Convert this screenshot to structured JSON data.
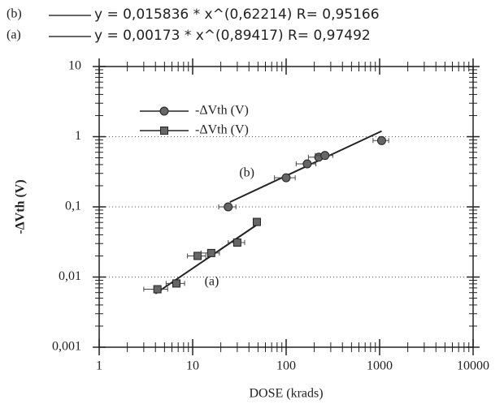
{
  "chart_data": {
    "type": "scatter",
    "fits": [
      {
        "label": "(b)",
        "equation": "y = 0,015836 * x^(0,62214) R= 0,95166"
      },
      {
        "label": "(a)",
        "equation": "y = 0,00173 * x^(0,89417) R= 0,97492"
      }
    ],
    "xlabel": "DOSE (krads)",
    "ylabel": "-ΔVth (V)",
    "xscale": "log",
    "yscale": "log",
    "xlim": [
      1,
      10000
    ],
    "ylim": [
      0.001,
      10
    ],
    "xticks": [
      1,
      10,
      100,
      1000,
      10000
    ],
    "yticks": [
      {
        "value": 0.001,
        "label": "0,001"
      },
      {
        "value": 0.01,
        "label": "0,01"
      },
      {
        "value": 0.1,
        "label": "0,1"
      },
      1,
      10
    ],
    "grid": true,
    "minor_ticks": true,
    "legend": "upper left",
    "series": [
      {
        "name": "-ΔVth (V)",
        "marker": "circle",
        "color": "#666666",
        "x": [
          24,
          100,
          168,
          223,
          260,
          1050
        ],
        "values": [
          0.1,
          0.26,
          0.41,
          0.51,
          0.54,
          0.88
        ],
        "xerr": [
          5,
          25,
          40,
          50,
          55,
          200
        ],
        "fit_x": [
          25,
          1050
        ],
        "fit_values": [
          0.117,
          1.2
        ]
      },
      {
        "name": "-ΔVth (V)",
        "marker": "square",
        "color": "#666666",
        "x": [
          4.2,
          6.7,
          11.3,
          15.8,
          30,
          48.6
        ],
        "values": [
          0.0067,
          0.0081,
          0.02,
          0.022,
          0.031,
          0.061
        ],
        "xerr": [
          1.2,
          1.5,
          2.5,
          3.5,
          6,
          0
        ],
        "fit_x": [
          4,
          50
        ],
        "fit_values": [
          0.0058,
          0.057
        ]
      }
    ],
    "annotations": [
      {
        "text": "(b)",
        "x": 38,
        "y": 0.3
      },
      {
        "text": "(a)",
        "x": 16,
        "y": 0.0085
      }
    ]
  }
}
